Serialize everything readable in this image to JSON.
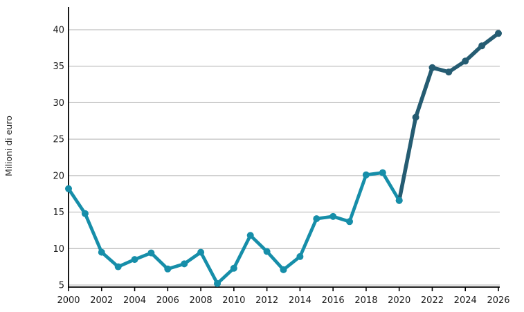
{
  "chart_data": {
    "type": "line",
    "title": "",
    "xlabel": "",
    "ylabel": "Milioni di euro",
    "xlim": [
      2000,
      2026
    ],
    "ylim": [
      4.7,
      43.1
    ],
    "grid": "horizontal",
    "legend": "none",
    "x_ticks": [
      2000,
      2002,
      2004,
      2006,
      2008,
      2010,
      2012,
      2014,
      2016,
      2018,
      2020,
      2022,
      2024,
      2026
    ],
    "y_ticks": [
      5,
      10,
      15,
      20,
      25,
      30,
      35,
      40
    ],
    "series": [
      {
        "name": "series-teal-2000-2020",
        "color": "#168EA9",
        "x": [
          2000,
          2001,
          2002,
          2003,
          2004,
          2005,
          2006,
          2007,
          2008,
          2009,
          2010,
          2011,
          2012,
          2013,
          2014,
          2015,
          2016,
          2017,
          2018,
          2019,
          2020
        ],
        "values": [
          18.2,
          14.8,
          9.5,
          7.5,
          8.5,
          9.4,
          7.2,
          7.9,
          9.5,
          5.2,
          7.3,
          11.8,
          9.6,
          7.1,
          8.9,
          14.1,
          14.4,
          13.7,
          20.1,
          20.4,
          16.6
        ]
      },
      {
        "name": "series-dark-2020-2026",
        "color": "#255C72",
        "x": [
          2020,
          2021,
          2022,
          2023,
          2024,
          2025,
          2026
        ],
        "values": [
          16.6,
          28.0,
          34.8,
          34.2,
          35.7,
          37.8,
          39.5
        ]
      }
    ],
    "colors": {
      "grid": "#b0b0b0",
      "axis": "#000000",
      "tick_text": "#1a1a1a"
    }
  }
}
